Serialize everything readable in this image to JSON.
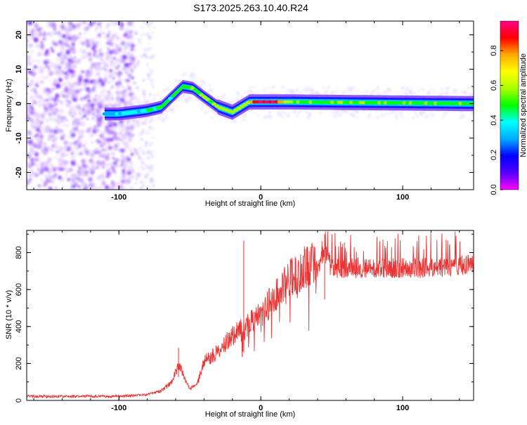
{
  "title": "S173.2025.263.10.40.R24",
  "colors": {
    "line": "#ee3333",
    "axis": "#000000"
  },
  "chart_data": [
    {
      "type": "heatmap",
      "xlabel": "Height of straight line (km)",
      "ylabel": "Frequency (Hz)",
      "xlim": [
        -165,
        150
      ],
      "ylim": [
        -25,
        24
      ],
      "xticks": [
        -100,
        0,
        100
      ],
      "yticks": [
        20,
        10,
        0,
        -10,
        -20
      ],
      "colorbar": {
        "label": "Normalized spectral amplitude",
        "range": [
          0,
          0.97
        ],
        "ticks": [
          0.0,
          0.2,
          0.4,
          0.6,
          0.8
        ],
        "colormap": [
          "#ff00ff",
          "#5500ff",
          "#0000ff",
          "#00aaff",
          "#00ffff",
          "#00ff00",
          "#aaff00",
          "#ffff00",
          "#ffaa00",
          "#ff0000",
          "#ff0088"
        ]
      },
      "ridge": {
        "x": [
          -110,
          -100,
          -90,
          -80,
          -70,
          -60,
          -55,
          -48,
          -40,
          -30,
          -20,
          -14,
          -8,
          0,
          10,
          20,
          150
        ],
        "y": [
          -3,
          -3,
          -2.5,
          -2,
          -1,
          3,
          5,
          4.5,
          2,
          -1,
          -2.5,
          -1,
          0.5,
          0.5,
          0.5,
          0.5,
          0
        ],
        "amplitude": [
          0.3,
          0.35,
          0.4,
          0.4,
          0.45,
          0.5,
          0.55,
          0.55,
          0.55,
          0.6,
          0.55,
          0.6,
          0.7,
          0.95,
          0.9,
          0.55,
          0.5
        ]
      }
    },
    {
      "type": "line",
      "xlabel": "Height of straight line (km)",
      "ylabel": "SNR (10 * v/v)",
      "xlim": [
        -165,
        150
      ],
      "ylim": [
        0,
        920
      ],
      "xticks": [
        -100,
        0,
        100
      ],
      "yticks": [
        0,
        200,
        400,
        600,
        800
      ],
      "envelope": {
        "x": [
          -165,
          -100,
          -80,
          -70,
          -63,
          -58,
          -55,
          -50,
          -45,
          -40,
          -30,
          -20,
          -10,
          0,
          10,
          20,
          30,
          40,
          45,
          50,
          60,
          80,
          100,
          120,
          150
        ],
        "y": [
          20,
          20,
          30,
          50,
          90,
          180,
          140,
          60,
          80,
          200,
          250,
          330,
          380,
          440,
          540,
          620,
          680,
          720,
          780,
          700,
          700,
          700,
          700,
          700,
          720
        ]
      },
      "spikes": [
        {
          "x": -12,
          "y": 865
        },
        {
          "x": 45,
          "y": 900
        },
        {
          "x": -58,
          "y": 285
        }
      ]
    }
  ]
}
